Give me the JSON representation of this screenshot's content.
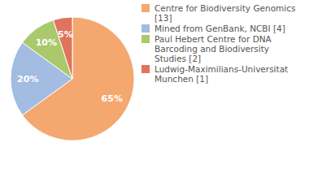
{
  "chart_data": {
    "type": "pie",
    "categories": [
      "Centre for Biodiversity Genomics [13]",
      "Mined from GenBank, NCBI [4]",
      "Paul Hebert Centre for DNA Barcoding and Biodiversity Studies [2]",
      "Ludwig-Maximilians-Universitat Munchen [1]"
    ],
    "values": [
      65,
      20,
      10,
      5
    ],
    "value_labels": [
      "65%",
      "20%",
      "10%",
      "5%"
    ],
    "colors": [
      "#f4a870",
      "#a2bce2",
      "#a9c96c",
      "#e0735d"
    ],
    "data_labels": true,
    "legend": "right"
  }
}
